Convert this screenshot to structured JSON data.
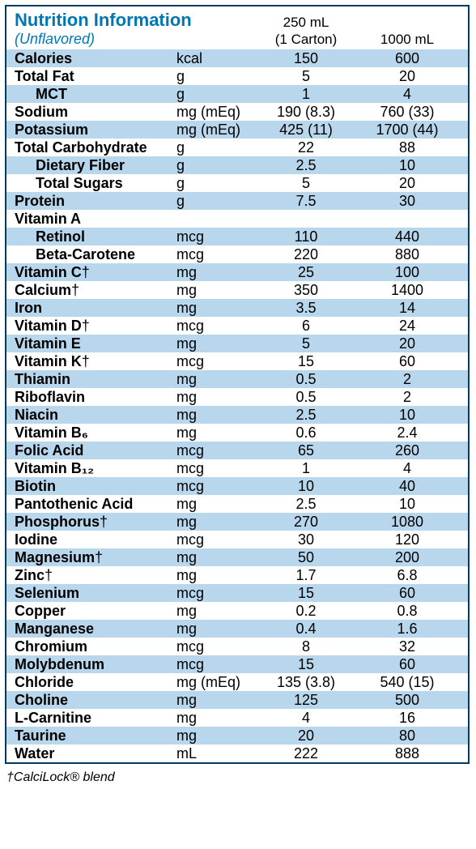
{
  "header": {
    "title": "Nutrition Information",
    "subtitle": "(Unflavored)",
    "col_250_line1": "250 mL",
    "col_250_line2": "(1 Carton)",
    "col_1000": "1000 mL"
  },
  "rows": [
    {
      "label": "Calories",
      "indent": false,
      "dagger": false,
      "unit": "kcal",
      "v250": "150",
      "v1000": "600"
    },
    {
      "label": "Total Fat",
      "indent": false,
      "dagger": false,
      "unit": "g",
      "v250": "5",
      "v1000": "20"
    },
    {
      "label": "MCT",
      "indent": true,
      "dagger": false,
      "unit": "g",
      "v250": "1",
      "v1000": "4"
    },
    {
      "label": "Sodium",
      "indent": false,
      "dagger": false,
      "unit": "mg (mEq)",
      "v250": "190 (8.3)",
      "v1000": "760 (33)"
    },
    {
      "label": "Potassium",
      "indent": false,
      "dagger": false,
      "unit": "mg (mEq)",
      "v250": "425 (11)",
      "v1000": "1700 (44)"
    },
    {
      "label": "Total Carbohydrate",
      "indent": false,
      "dagger": false,
      "unit": "g",
      "v250": "22",
      "v1000": "88"
    },
    {
      "label": "Dietary Fiber",
      "indent": true,
      "dagger": false,
      "unit": "g",
      "v250": "2.5",
      "v1000": "10"
    },
    {
      "label": "Total Sugars",
      "indent": true,
      "dagger": false,
      "unit": "g",
      "v250": "5",
      "v1000": "20"
    },
    {
      "label": "Protein",
      "indent": false,
      "dagger": false,
      "unit": "g",
      "v250": "7.5",
      "v1000": "30"
    },
    {
      "label": "Vitamin A",
      "indent": false,
      "dagger": false,
      "unit": "",
      "v250": "",
      "v1000": ""
    },
    {
      "label": "Retinol",
      "indent": true,
      "dagger": false,
      "unit": "mcg",
      "v250": "110",
      "v1000": "440"
    },
    {
      "label": "Beta-Carotene",
      "indent": true,
      "dagger": false,
      "unit": "mcg",
      "v250": "220",
      "v1000": "880"
    },
    {
      "label": "Vitamin C",
      "indent": false,
      "dagger": true,
      "unit": "mg",
      "v250": "25",
      "v1000": "100"
    },
    {
      "label": "Calcium",
      "indent": false,
      "dagger": true,
      "unit": "mg",
      "v250": "350",
      "v1000": "1400"
    },
    {
      "label": "Iron",
      "indent": false,
      "dagger": false,
      "unit": "mg",
      "v250": "3.5",
      "v1000": "14"
    },
    {
      "label": "Vitamin D",
      "indent": false,
      "dagger": true,
      "unit": "mcg",
      "v250": "6",
      "v1000": "24"
    },
    {
      "label": "Vitamin E",
      "indent": false,
      "dagger": false,
      "unit": "mg",
      "v250": "5",
      "v1000": "20"
    },
    {
      "label": "Vitamin K",
      "indent": false,
      "dagger": true,
      "unit": "mcg",
      "v250": "15",
      "v1000": "60"
    },
    {
      "label": "Thiamin",
      "indent": false,
      "dagger": false,
      "unit": "mg",
      "v250": "0.5",
      "v1000": "2"
    },
    {
      "label": "Riboflavin",
      "indent": false,
      "dagger": false,
      "unit": "mg",
      "v250": "0.5",
      "v1000": "2"
    },
    {
      "label": "Niacin",
      "indent": false,
      "dagger": false,
      "unit": "mg",
      "v250": "2.5",
      "v1000": "10"
    },
    {
      "label": "Vitamin B₆",
      "indent": false,
      "dagger": false,
      "unit": "mg",
      "v250": "0.6",
      "v1000": "2.4"
    },
    {
      "label": "Folic Acid",
      "indent": false,
      "dagger": false,
      "unit": "mcg",
      "v250": "65",
      "v1000": "260"
    },
    {
      "label": "Vitamin B₁₂",
      "indent": false,
      "dagger": false,
      "unit": "mcg",
      "v250": "1",
      "v1000": "4"
    },
    {
      "label": "Biotin",
      "indent": false,
      "dagger": false,
      "unit": "mcg",
      "v250": "10",
      "v1000": "40"
    },
    {
      "label": "Pantothenic Acid",
      "indent": false,
      "dagger": false,
      "unit": "mg",
      "v250": "2.5",
      "v1000": "10"
    },
    {
      "label": "Phosphorus",
      "indent": false,
      "dagger": true,
      "unit": "mg",
      "v250": "270",
      "v1000": "1080"
    },
    {
      "label": "Iodine",
      "indent": false,
      "dagger": false,
      "unit": "mcg",
      "v250": "30",
      "v1000": "120"
    },
    {
      "label": "Magnesium",
      "indent": false,
      "dagger": true,
      "unit": "mg",
      "v250": "50",
      "v1000": "200"
    },
    {
      "label": "Zinc",
      "indent": false,
      "dagger": true,
      "unit": "mg",
      "v250": "1.7",
      "v1000": "6.8"
    },
    {
      "label": "Selenium",
      "indent": false,
      "dagger": false,
      "unit": "mcg",
      "v250": "15",
      "v1000": "60"
    },
    {
      "label": "Copper",
      "indent": false,
      "dagger": false,
      "unit": "mg",
      "v250": "0.2",
      "v1000": "0.8"
    },
    {
      "label": "Manganese",
      "indent": false,
      "dagger": false,
      "unit": "mg",
      "v250": "0.4",
      "v1000": "1.6"
    },
    {
      "label": "Chromium",
      "indent": false,
      "dagger": false,
      "unit": "mcg",
      "v250": "8",
      "v1000": "32"
    },
    {
      "label": "Molybdenum",
      "indent": false,
      "dagger": false,
      "unit": "mcg",
      "v250": "15",
      "v1000": "60"
    },
    {
      "label": "Chloride",
      "indent": false,
      "dagger": false,
      "unit": "mg (mEq)",
      "v250": "135 (3.8)",
      "v1000": "540 (15)"
    },
    {
      "label": "Choline",
      "indent": false,
      "dagger": false,
      "unit": "mg",
      "v250": "125",
      "v1000": "500"
    },
    {
      "label": "L-Carnitine",
      "indent": false,
      "dagger": false,
      "unit": "mg",
      "v250": "4",
      "v1000": "16"
    },
    {
      "label": "Taurine",
      "indent": false,
      "dagger": false,
      "unit": "mg",
      "v250": "20",
      "v1000": "80"
    },
    {
      "label": "Water",
      "indent": false,
      "dagger": false,
      "unit": "mL",
      "v250": "222",
      "v1000": "888"
    }
  ],
  "footnote": "†CalciLock® blend",
  "style": {
    "stripe_color": "#b8d6ec",
    "border_color": "#003a5d",
    "title_color": "#0077b3"
  }
}
